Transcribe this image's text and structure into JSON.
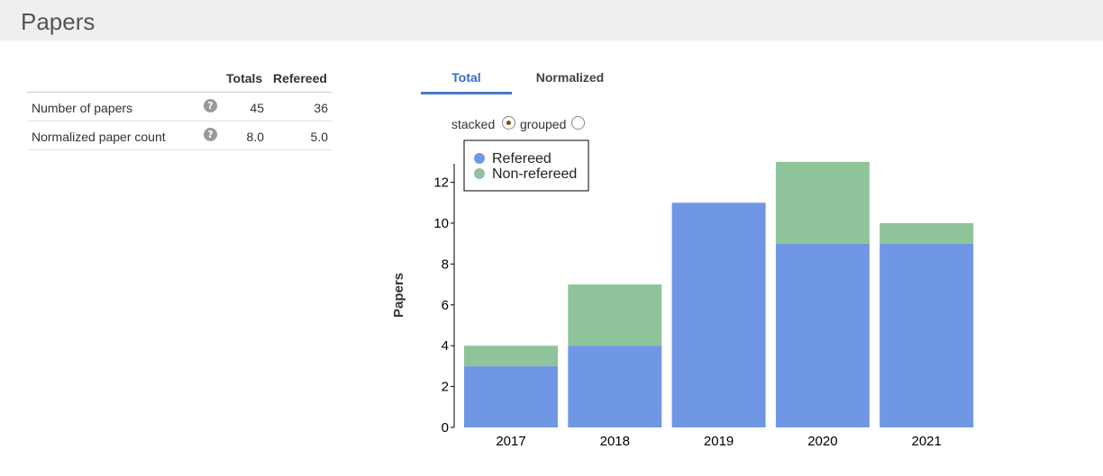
{
  "header": {
    "title": "Papers"
  },
  "stats_table": {
    "columns": [
      "Totals",
      "Refereed"
    ],
    "rows": [
      {
        "label": "Number of papers",
        "totals": "45",
        "refereed": "36"
      },
      {
        "label": "Normalized paper count",
        "totals": "8.0",
        "refereed": "5.0"
      }
    ],
    "help_icon": "question-circle-icon"
  },
  "tabs": [
    {
      "label": "Total",
      "active": true
    },
    {
      "label": "Normalized",
      "active": false
    }
  ],
  "display_mode": {
    "options": [
      "stacked",
      "grouped"
    ],
    "selected": "stacked"
  },
  "colors": {
    "refereed": "#7097e4",
    "non_refereed": "#8fc49a",
    "accent": "#4a78c8"
  },
  "chart_data": {
    "type": "bar",
    "stacked": true,
    "categories": [
      "2017",
      "2018",
      "2019",
      "2020",
      "2021"
    ],
    "series": [
      {
        "name": "Refereed",
        "values": [
          3,
          4,
          11,
          9,
          9
        ]
      },
      {
        "name": "Non-refereed",
        "values": [
          1,
          3,
          0,
          4,
          1
        ]
      }
    ],
    "ylabel": "Papers",
    "ylim": [
      0,
      13
    ],
    "yticks": [
      0,
      2,
      4,
      6,
      8,
      10,
      12
    ],
    "legend_position": "top-left"
  }
}
